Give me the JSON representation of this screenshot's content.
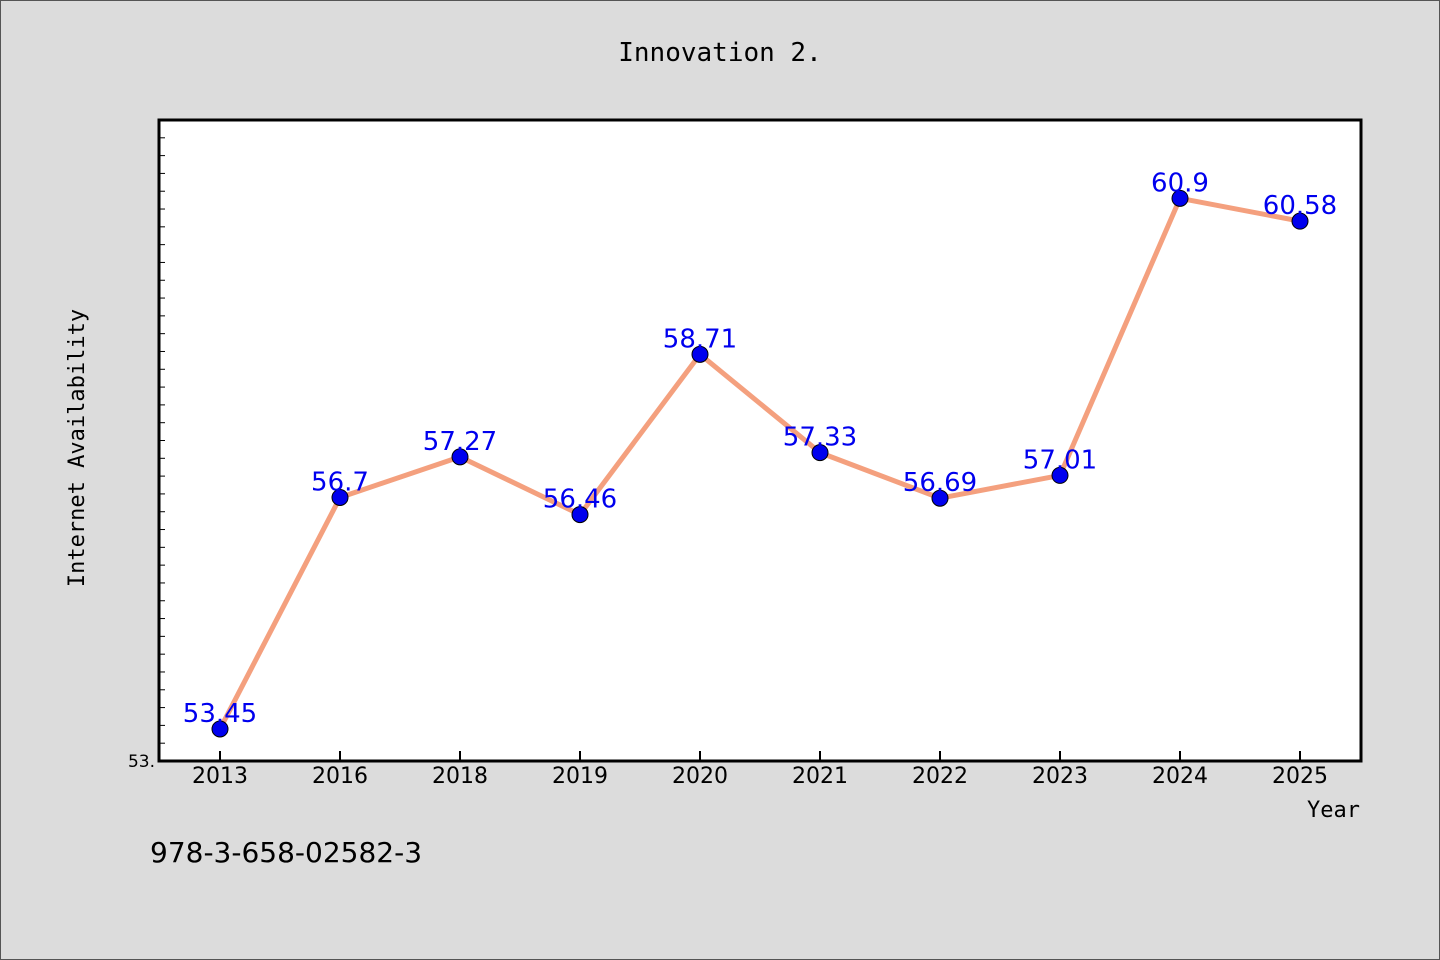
{
  "chart_data": {
    "type": "line",
    "title": "Innovation 2.",
    "xlabel": "Year",
    "ylabel": "Internet Availability",
    "categories": [
      "2013",
      "2016",
      "2018",
      "2019",
      "2020",
      "2021",
      "2022",
      "2023",
      "2024",
      "2025"
    ],
    "series": [
      {
        "values": [
          53.45,
          56.7,
          57.27,
          56.46,
          58.71,
          57.33,
          56.69,
          57.01,
          60.9,
          60.58
        ],
        "labels": [
          "53.45",
          "56.7",
          "57.27",
          "56.46",
          "58.71",
          "57.33",
          "56.69",
          "57.01",
          "60.9",
          "60.58"
        ],
        "line_color": "#f4a07e",
        "marker_color": "#0000ee",
        "label_color": "#0000ee"
      }
    ],
    "ylim": [
      53.0,
      62.0
    ],
    "y_tick_label": "53.",
    "grid": false,
    "legend": "none"
  },
  "footer_text": "978-3-658-02582-3",
  "colors": {
    "background": "#dcdcdc",
    "plot_background": "#ffffff",
    "axis": "#000000"
  }
}
